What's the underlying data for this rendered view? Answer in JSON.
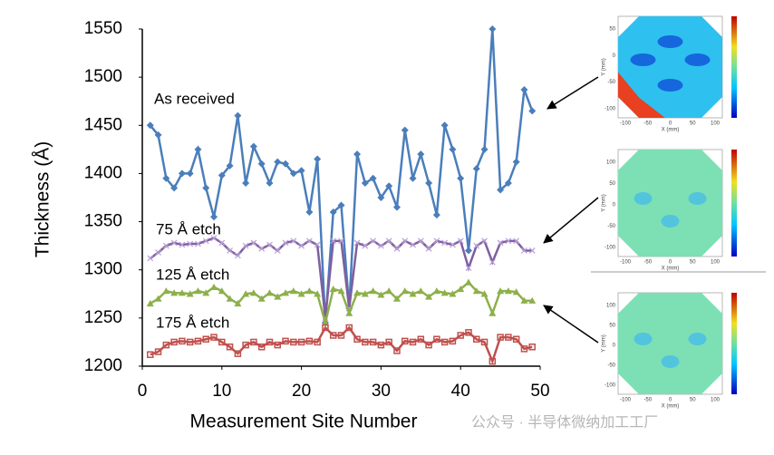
{
  "chart_data": {
    "type": "line",
    "xlabel": "Measurement Site Number",
    "ylabel": "Thickness (Å)",
    "x": [
      1,
      2,
      3,
      4,
      5,
      6,
      7,
      8,
      9,
      10,
      11,
      12,
      13,
      14,
      15,
      16,
      17,
      18,
      19,
      20,
      21,
      22,
      23,
      24,
      25,
      26,
      27,
      28,
      29,
      30,
      31,
      32,
      33,
      34,
      35,
      36,
      37,
      38,
      39,
      40,
      41,
      42,
      43,
      44,
      45,
      46,
      47,
      48,
      49
    ],
    "xlim": [
      0,
      50
    ],
    "xticks": [
      0,
      10,
      20,
      30,
      40,
      50
    ],
    "ylim": [
      1200,
      1550
    ],
    "yticks": [
      1200,
      1250,
      1300,
      1350,
      1400,
      1450,
      1500,
      1550
    ],
    "series": [
      {
        "name": "As received",
        "color": "#4a7ebb",
        "marker": "diamond",
        "values": [
          1450,
          1440,
          1395,
          1385,
          1400,
          1400,
          1425,
          1385,
          1355,
          1398,
          1408,
          1460,
          1390,
          1428,
          1410,
          1390,
          1412,
          1410,
          1400,
          1403,
          1360,
          1415,
          1245,
          1360,
          1367,
          1260,
          1420,
          1390,
          1395,
          1375,
          1387,
          1365,
          1445,
          1395,
          1420,
          1390,
          1357,
          1450,
          1425,
          1395,
          1320,
          1405,
          1425,
          1550,
          1383,
          1390,
          1412,
          1487,
          1465
        ]
      },
      {
        "name": "75 Å etch",
        "color": "#7f5fa0",
        "marker": "x",
        "values": [
          1312,
          1318,
          1325,
          1328,
          1326,
          1327,
          1327,
          1330,
          1333,
          1328,
          1320,
          1315,
          1325,
          1328,
          1322,
          1326,
          1320,
          1328,
          1330,
          1325,
          1330,
          1326,
          1250,
          1330,
          1330,
          1260,
          1328,
          1325,
          1330,
          1325,
          1330,
          1322,
          1330,
          1326,
          1330,
          1322,
          1330,
          1328,
          1326,
          1330,
          1302,
          1325,
          1330,
          1308,
          1328,
          1330,
          1330,
          1320,
          1320
        ]
      },
      {
        "name": "125 Å etch",
        "color": "#8db04a",
        "marker": "triangle",
        "values": [
          1265,
          1270,
          1278,
          1276,
          1276,
          1275,
          1278,
          1276,
          1282,
          1278,
          1270,
          1265,
          1275,
          1276,
          1270,
          1276,
          1272,
          1276,
          1278,
          1275,
          1278,
          1275,
          1245,
          1280,
          1278,
          1255,
          1276,
          1275,
          1278,
          1274,
          1278,
          1270,
          1278,
          1275,
          1278,
          1272,
          1278,
          1276,
          1275,
          1280,
          1287,
          1278,
          1275,
          1255,
          1278,
          1278,
          1277,
          1268,
          1268
        ]
      },
      {
        "name": "175 Å etch",
        "color": "#c0504d",
        "marker": "square",
        "values": [
          1212,
          1215,
          1222,
          1225,
          1226,
          1225,
          1226,
          1228,
          1230,
          1225,
          1220,
          1213,
          1222,
          1225,
          1220,
          1225,
          1222,
          1226,
          1225,
          1225,
          1226,
          1225,
          1240,
          1232,
          1232,
          1240,
          1228,
          1225,
          1225,
          1222,
          1225,
          1216,
          1226,
          1225,
          1228,
          1222,
          1228,
          1225,
          1226,
          1232,
          1235,
          1228,
          1225,
          1205,
          1230,
          1230,
          1228,
          1218,
          1220
        ]
      }
    ],
    "insets": [
      {
        "x_label": "X (mm)",
        "y_label": "Y (mm)",
        "xticks": [
          -100,
          -50,
          0,
          50,
          100
        ],
        "yticks": [
          50,
          0,
          -50,
          -100
        ]
      },
      {
        "x_label": "X (mm)",
        "y_label": "Y (mm)",
        "xticks": [
          -100,
          -50,
          0,
          50,
          100
        ],
        "yticks": [
          100,
          50,
          0,
          -50,
          -100
        ]
      },
      {
        "x_label": "X (mm)",
        "y_label": "Y (mm)",
        "xticks": [
          -100,
          -50,
          0,
          50,
          100
        ],
        "yticks": [
          100,
          50,
          0,
          -50,
          -100
        ]
      }
    ],
    "watermark": "公众号 · 半导体微纳加工工厂"
  }
}
